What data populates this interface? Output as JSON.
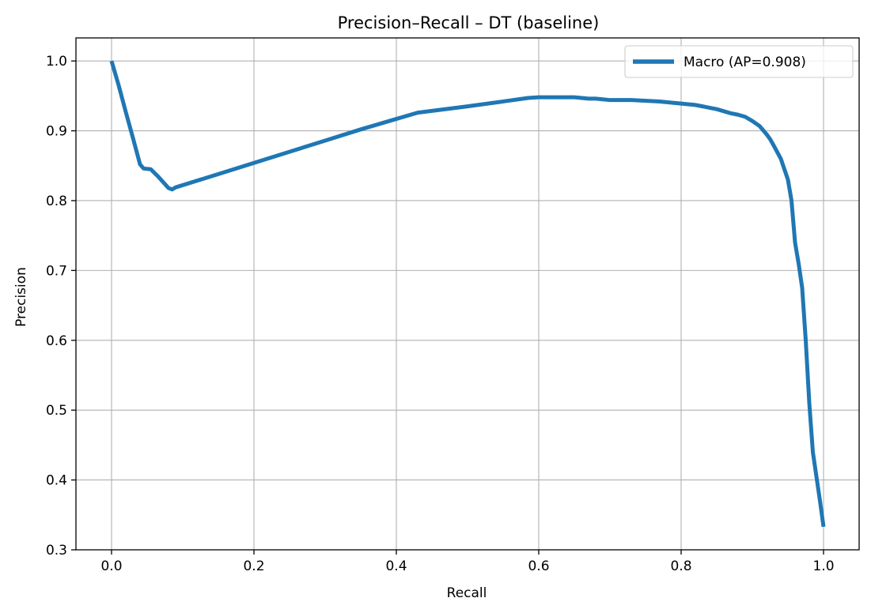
{
  "chart_data": {
    "type": "line",
    "title": "Precision–Recall – DT (baseline)",
    "xlabel": "Recall",
    "ylabel": "Precision",
    "xlim": [
      -0.05,
      1.05
    ],
    "ylim": [
      0.3,
      1.033
    ],
    "xticks": [
      0.0,
      0.2,
      0.4,
      0.6,
      0.8,
      1.0
    ],
    "xtick_labels": [
      "0.0",
      "0.2",
      "0.4",
      "0.6",
      "0.8",
      "1.0"
    ],
    "yticks": [
      0.3,
      0.4,
      0.5,
      0.6,
      0.7,
      0.8,
      0.9,
      1.0
    ],
    "ytick_labels": [
      "0.3",
      "0.4",
      "0.5",
      "0.6",
      "0.7",
      "0.8",
      "0.9",
      "1.0"
    ],
    "grid": true,
    "legend_position": "top-right",
    "series": [
      {
        "name": "Macro (AP=0.908)",
        "color": "#1f77b4",
        "x": [
          0.0,
          0.01,
          0.02,
          0.03,
          0.04,
          0.045,
          0.055,
          0.065,
          0.08,
          0.085,
          0.09,
          0.15,
          0.2,
          0.25,
          0.3,
          0.35,
          0.4,
          0.43,
          0.5,
          0.55,
          0.585,
          0.6,
          0.65,
          0.66,
          0.67,
          0.68,
          0.69,
          0.7,
          0.73,
          0.77,
          0.78,
          0.79,
          0.8,
          0.81,
          0.82,
          0.83,
          0.84,
          0.85,
          0.86,
          0.87,
          0.88,
          0.89,
          0.9,
          0.91,
          0.92,
          0.925,
          0.93,
          0.94,
          0.95,
          0.955,
          0.96,
          0.965,
          0.97,
          0.975,
          0.98,
          0.985,
          0.99,
          0.995,
          1.0
        ],
        "y": [
          1.0,
          0.965,
          0.927,
          0.89,
          0.852,
          0.846,
          0.845,
          0.835,
          0.818,
          0.816,
          0.819,
          0.838,
          0.854,
          0.87,
          0.886,
          0.902,
          0.917,
          0.926,
          0.935,
          0.942,
          0.947,
          0.948,
          0.948,
          0.947,
          0.946,
          0.946,
          0.945,
          0.944,
          0.944,
          0.942,
          0.941,
          0.94,
          0.939,
          0.938,
          0.937,
          0.935,
          0.933,
          0.931,
          0.928,
          0.925,
          0.923,
          0.92,
          0.914,
          0.907,
          0.895,
          0.888,
          0.879,
          0.86,
          0.83,
          0.8,
          0.74,
          0.71,
          0.675,
          0.6,
          0.51,
          0.44,
          0.405,
          0.37,
          0.333
        ]
      }
    ]
  }
}
